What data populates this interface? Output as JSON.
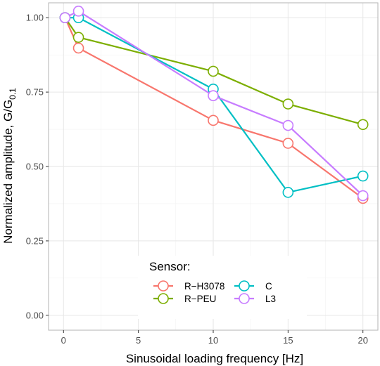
{
  "chart_data": {
    "type": "line",
    "xlabel": "Sinusoidal loading frequency [Hz]",
    "ylabel_main": "Normalized amplitude,  G/G",
    "ylabel_sub": "0.1",
    "xlim": [
      -1,
      21
    ],
    "ylim": [
      -0.05,
      1.05
    ],
    "x_ticks": [
      0,
      5,
      10,
      15,
      20
    ],
    "x_tick_labels": [
      "0",
      "5",
      "10",
      "15",
      "20"
    ],
    "y_ticks": [
      0.0,
      0.25,
      0.5,
      0.75,
      1.0
    ],
    "y_tick_labels": [
      "0.00",
      "0.25",
      "0.50",
      "0.75",
      "1.00"
    ],
    "grid": true,
    "legend": {
      "title": "Sensor:",
      "position": "bottom-center"
    },
    "series": [
      {
        "name": "R−H3078",
        "color": "#F8766D",
        "x": [
          0.1,
          1,
          10,
          15,
          20
        ],
        "y": [
          1.0,
          0.898,
          0.655,
          0.578,
          0.393
        ]
      },
      {
        "name": "R−PEU",
        "color": "#7CAE00",
        "x": [
          0.1,
          1,
          10,
          15,
          20
        ],
        "y": [
          1.0,
          0.934,
          0.82,
          0.71,
          0.641
        ]
      },
      {
        "name": "C",
        "color": "#00BFC4",
        "x": [
          0.1,
          1,
          10,
          15,
          20
        ],
        "y": [
          1.0,
          1.0,
          0.76,
          0.413,
          0.468
        ]
      },
      {
        "name": "L3",
        "color": "#C77CFF",
        "x": [
          0.1,
          1,
          10,
          15,
          20
        ],
        "y": [
          1.0,
          1.022,
          0.738,
          0.638,
          0.402
        ]
      }
    ]
  }
}
